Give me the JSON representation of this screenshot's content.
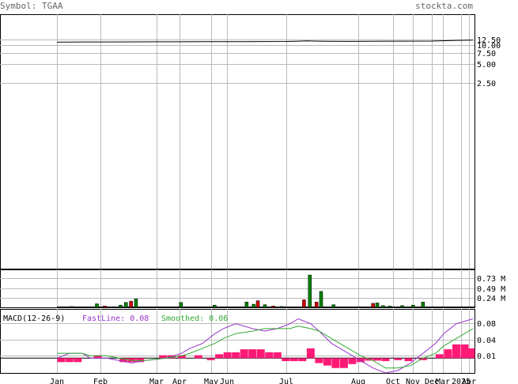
{
  "header": {
    "symbol_label": "Symbol: TGAA",
    "site": "stockta.com"
  },
  "colors": {
    "grid": "#bbbbbb",
    "frame": "#000000",
    "header_text": "#666666",
    "up_bar": "#008000",
    "down_bar": "#cc0000",
    "macd_hist": "#ff1a75",
    "fastline": "#9933cc",
    "smoothed": "#33aa33"
  },
  "chart_data": [
    {
      "type": "line",
      "panel": "price",
      "scale": "log",
      "y_ticks": [
        "12.50",
        "10.00",
        "7.50",
        "5.00",
        "2.50"
      ],
      "ylim": [
        0.15,
        17.0
      ],
      "x_ticks": [
        "Jan",
        "Feb",
        "Mar",
        "Apr",
        "May",
        "Jun",
        "Jul",
        "Aug",
        "Oct",
        "Nov",
        "Dec",
        "Mar",
        "2025",
        "Apr"
      ],
      "series": [
        {
          "x": [
            0.0,
            0.01,
            0.03,
            0.06,
            0.1,
            0.2,
            0.25,
            0.3,
            0.35,
            0.4,
            0.45,
            0.5,
            0.55,
            0.6,
            0.63,
            0.65,
            0.7,
            0.8,
            0.9,
            0.96,
            1.0
          ],
          "values": [
            10.1,
            10.12,
            10.14,
            10.15,
            10.15,
            10.16,
            10.18,
            10.18,
            10.2,
            10.2,
            10.2,
            10.22,
            10.24,
            10.35,
            10.3,
            10.28,
            10.26,
            10.3,
            10.32,
            10.45,
            10.5
          ]
        }
      ]
    },
    {
      "type": "bar",
      "panel": "volume",
      "y_ticks": [
        "0.73 M",
        "0.49 M",
        "0.24 M"
      ],
      "ylim": [
        0,
        0.82
      ],
      "bars": [
        {
          "x": 0.035,
          "v": 0.02,
          "up": true
        },
        {
          "x": 0.096,
          "v": 0.08,
          "up": true
        },
        {
          "x": 0.115,
          "v": 0.03,
          "up": false
        },
        {
          "x": 0.153,
          "v": 0.05,
          "up": true
        },
        {
          "x": 0.166,
          "v": 0.11,
          "up": true
        },
        {
          "x": 0.178,
          "v": 0.14,
          "up": false
        },
        {
          "x": 0.19,
          "v": 0.19,
          "up": true
        },
        {
          "x": 0.298,
          "v": 0.11,
          "up": true
        },
        {
          "x": 0.379,
          "v": 0.05,
          "up": true
        },
        {
          "x": 0.456,
          "v": 0.12,
          "up": true
        },
        {
          "x": 0.473,
          "v": 0.07,
          "up": true
        },
        {
          "x": 0.483,
          "v": 0.15,
          "up": false
        },
        {
          "x": 0.5,
          "v": 0.06,
          "up": true
        },
        {
          "x": 0.52,
          "v": 0.03,
          "up": false
        },
        {
          "x": 0.54,
          "v": 0.02,
          "up": true
        },
        {
          "x": 0.594,
          "v": 0.17,
          "up": false
        },
        {
          "x": 0.608,
          "v": 0.73,
          "up": true
        },
        {
          "x": 0.624,
          "v": 0.12,
          "up": false
        },
        {
          "x": 0.635,
          "v": 0.36,
          "up": true
        },
        {
          "x": 0.665,
          "v": 0.06,
          "up": true
        },
        {
          "x": 0.76,
          "v": 0.09,
          "up": false
        },
        {
          "x": 0.77,
          "v": 0.1,
          "up": true
        },
        {
          "x": 0.784,
          "v": 0.04,
          "up": true
        },
        {
          "x": 0.8,
          "v": 0.03,
          "up": true
        },
        {
          "x": 0.83,
          "v": 0.04,
          "up": true
        },
        {
          "x": 0.856,
          "v": 0.05,
          "up": true
        },
        {
          "x": 0.88,
          "v": 0.12,
          "up": true
        }
      ]
    },
    {
      "type": "line",
      "panel": "macd",
      "title": "MACD(12-26-9)",
      "fastline_label": "FastLine: 0.08",
      "smoothed_label": "Smoothed: 0.06",
      "y_ticks": [
        "0.08",
        "0.04",
        "0.01"
      ],
      "ylim": [
        -0.03,
        0.1
      ],
      "series": [
        {
          "name": "FastLine",
          "x": [
            0.0,
            0.03,
            0.06,
            0.08,
            0.12,
            0.15,
            0.18,
            0.21,
            0.24,
            0.26,
            0.3,
            0.32,
            0.35,
            0.38,
            0.4,
            0.43,
            0.47,
            0.5,
            0.53,
            0.56,
            0.58,
            0.61,
            0.63,
            0.66,
            0.7,
            0.73,
            0.76,
            0.79,
            0.82,
            0.85,
            0.88,
            0.91,
            0.93,
            0.96,
            1.0
          ],
          "values": [
            0.0,
            0.01,
            0.01,
            0.0,
            0.0,
            -0.005,
            -0.01,
            -0.005,
            -0.002,
            0.0,
            0.01,
            0.02,
            0.03,
            0.05,
            0.06,
            0.07,
            0.06,
            0.055,
            0.06,
            0.07,
            0.08,
            0.07,
            0.055,
            0.03,
            0.01,
            -0.005,
            -0.02,
            -0.03,
            -0.025,
            -0.01,
            0.01,
            0.03,
            0.05,
            0.07,
            0.08
          ]
        },
        {
          "name": "Smoothed",
          "x": [
            0.0,
            0.03,
            0.06,
            0.08,
            0.12,
            0.15,
            0.18,
            0.21,
            0.24,
            0.26,
            0.3,
            0.32,
            0.35,
            0.38,
            0.4,
            0.43,
            0.47,
            0.5,
            0.53,
            0.56,
            0.58,
            0.61,
            0.63,
            0.66,
            0.7,
            0.73,
            0.76,
            0.79,
            0.82,
            0.85,
            0.88,
            0.91,
            0.93,
            0.96,
            1.0
          ],
          "values": [
            0.01,
            0.01,
            0.01,
            0.005,
            0.005,
            0.0,
            -0.005,
            -0.005,
            -0.002,
            0.0,
            0.005,
            0.01,
            0.02,
            0.03,
            0.04,
            0.05,
            0.055,
            0.06,
            0.06,
            0.06,
            0.065,
            0.06,
            0.055,
            0.04,
            0.02,
            0.005,
            -0.005,
            -0.02,
            -0.02,
            -0.015,
            0.0,
            0.01,
            0.025,
            0.04,
            0.06
          ]
        }
      ],
      "histogram": [
        {
          "x": 0.01,
          "v": -0.008
        },
        {
          "x": 0.03,
          "v": -0.008
        },
        {
          "x": 0.05,
          "v": -0.008
        },
        {
          "x": 0.098,
          "v": 0.006
        },
        {
          "x": 0.16,
          "v": -0.008
        },
        {
          "x": 0.18,
          "v": -0.008
        },
        {
          "x": 0.2,
          "v": -0.008
        },
        {
          "x": 0.255,
          "v": 0.006
        },
        {
          "x": 0.275,
          "v": 0.006
        },
        {
          "x": 0.3,
          "v": 0.006
        },
        {
          "x": 0.34,
          "v": 0.006
        },
        {
          "x": 0.37,
          "v": -0.004
        },
        {
          "x": 0.39,
          "v": 0.008
        },
        {
          "x": 0.41,
          "v": 0.012
        },
        {
          "x": 0.43,
          "v": 0.012
        },
        {
          "x": 0.45,
          "v": 0.018
        },
        {
          "x": 0.47,
          "v": 0.018
        },
        {
          "x": 0.49,
          "v": 0.018
        },
        {
          "x": 0.51,
          "v": 0.012
        },
        {
          "x": 0.53,
          "v": 0.012
        },
        {
          "x": 0.55,
          "v": -0.006
        },
        {
          "x": 0.57,
          "v": -0.006
        },
        {
          "x": 0.59,
          "v": -0.006
        },
        {
          "x": 0.61,
          "v": 0.02
        },
        {
          "x": 0.63,
          "v": -0.01
        },
        {
          "x": 0.65,
          "v": -0.015
        },
        {
          "x": 0.67,
          "v": -0.02
        },
        {
          "x": 0.69,
          "v": -0.02
        },
        {
          "x": 0.71,
          "v": -0.012
        },
        {
          "x": 0.73,
          "v": -0.008
        },
        {
          "x": 0.75,
          "v": -0.005
        },
        {
          "x": 0.77,
          "v": -0.005
        },
        {
          "x": 0.79,
          "v": -0.006
        },
        {
          "x": 0.82,
          "v": -0.004
        },
        {
          "x": 0.845,
          "v": -0.006
        },
        {
          "x": 0.88,
          "v": -0.004
        },
        {
          "x": 0.92,
          "v": 0.008
        },
        {
          "x": 0.94,
          "v": 0.018
        },
        {
          "x": 0.96,
          "v": 0.028
        },
        {
          "x": 0.98,
          "v": 0.028
        },
        {
          "x": 0.995,
          "v": 0.02
        }
      ]
    }
  ]
}
